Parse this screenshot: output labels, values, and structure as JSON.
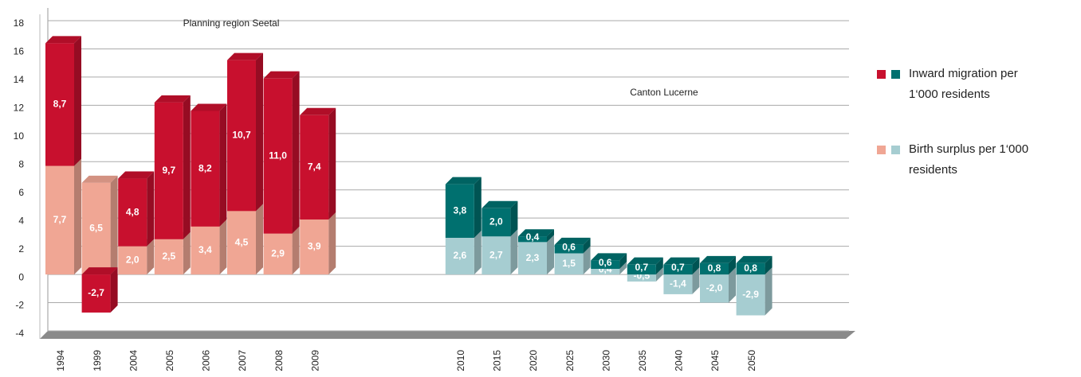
{
  "chart_data": {
    "type": "bar",
    "categories": [
      "1994",
      "1999",
      "2004",
      "2005",
      "2006",
      "2007",
      "2008",
      "2009",
      "2010",
      "2015",
      "2020",
      "2025",
      "2030",
      "2035",
      "2040",
      "2045",
      "2050"
    ],
    "groups": [
      {
        "label": "Planning region Seetal",
        "first": "1994"
      },
      {
        "label": "Canton Lucerne",
        "first": "2010"
      }
    ],
    "series": [
      {
        "name": "Inward migration per 1‘000 residents",
        "colors": [
          "#c8102e",
          "#00706f"
        ],
        "values": [
          8.7,
          -2.7,
          4.8,
          9.7,
          8.2,
          10.7,
          11.0,
          7.4,
          3.8,
          2.0,
          0.4,
          0.6,
          0.6,
          0.7,
          0.7,
          0.8,
          0.8
        ],
        "value_labels": [
          "8,7",
          "-2,7",
          "4,8",
          "9,7",
          "8,2",
          "10,7",
          "11,0",
          "7,4",
          "3,8",
          "2,0",
          "0,4",
          "0,6",
          "0,6",
          "0,7",
          "0,7",
          "0,8",
          "0,8"
        ]
      },
      {
        "name": "Birth surplus per 1‘000 residents",
        "colors": [
          "#f0a694",
          "#a6cdd1"
        ],
        "values": [
          7.7,
          6.5,
          2.0,
          2.5,
          3.4,
          4.5,
          2.9,
          3.9,
          2.6,
          2.7,
          2.3,
          1.5,
          0.4,
          -0.5,
          -1.4,
          -2.0,
          -2.9
        ],
        "value_labels": [
          "7,7",
          "6,5",
          "2,0",
          "2,5",
          "3,4",
          "4,5",
          "2,9",
          "3,9",
          "2,6",
          "2,7",
          "2,3",
          "1,5",
          "0,4",
          "-0,5",
          "-1,4",
          "-2,0",
          "-2,9"
        ]
      }
    ],
    "ylim": [
      -4,
      18
    ],
    "yticks": [
      -4,
      -2,
      0,
      2,
      4,
      6,
      8,
      10,
      12,
      14,
      16,
      18
    ],
    "grid": true
  }
}
